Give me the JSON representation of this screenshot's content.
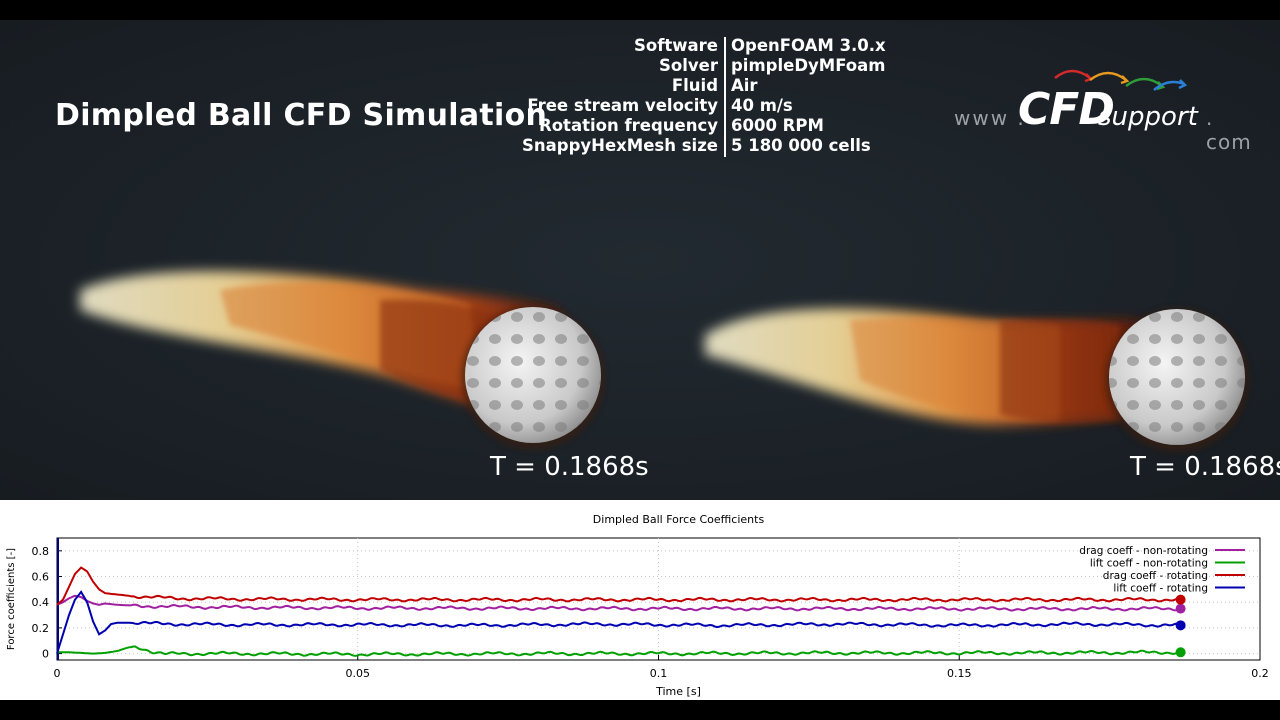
{
  "video": {
    "title": "Dimpled Ball CFD Simulation",
    "info": [
      {
        "label": "Software",
        "value": "OpenFOAM 3.0.x"
      },
      {
        "label": "Solver",
        "value": "pimpleDyMFoam"
      },
      {
        "label": "Fluid",
        "value": "Air"
      },
      {
        "label": "Free stream velocity",
        "value": "40 m/s"
      },
      {
        "label": "Rotation frequency",
        "value": "6000 RPM"
      },
      {
        "label": "SnappyHexMesh size",
        "value": "5 180 000 cells"
      }
    ],
    "logo": {
      "prefix": "www .",
      "brand": "CFD",
      "suffix": "support",
      "tld": ". com"
    },
    "time_left": "T = 0.1868s",
    "time_right": "T = 0.1868s"
  },
  "chart_data": {
    "type": "line",
    "title": "Dimpled Ball Force Coefficients",
    "xlabel": "Time [s]",
    "ylabel": "Force coefficients [-]",
    "xlim": [
      0,
      0.2
    ],
    "ylim": [
      -0.05,
      0.9
    ],
    "xticks": [
      0,
      0.05,
      0.1,
      0.15,
      0.2
    ],
    "xtick_labels": [
      "0",
      "0.05",
      "0.1",
      "0.15",
      "0.2"
    ],
    "yticks": [
      0,
      0.2,
      0.4,
      0.6,
      0.8
    ],
    "ytick_labels": [
      "0",
      "0.2",
      "0.4",
      "0.6",
      "0.8"
    ],
    "grid": true,
    "legend_position": "top-right",
    "series": [
      {
        "name": "drag coeff - non-rotating",
        "color": "#a020a0",
        "x": [
          0,
          0.001,
          0.002,
          0.003,
          0.004,
          0.005,
          0.006,
          0.007,
          0.008,
          0.01,
          0.012,
          0.015,
          0.02,
          0.03,
          0.05,
          0.08,
          0.1,
          0.13,
          0.16,
          0.1868
        ],
        "y": [
          0.38,
          0.4,
          0.43,
          0.45,
          0.44,
          0.41,
          0.39,
          0.38,
          0.39,
          0.38,
          0.375,
          0.37,
          0.365,
          0.36,
          0.355,
          0.352,
          0.35,
          0.35,
          0.348,
          0.35
        ]
      },
      {
        "name": "lift coeff - non-rotating",
        "color": "#00a000",
        "x": [
          0,
          0.002,
          0.004,
          0.006,
          0.008,
          0.01,
          0.012,
          0.013,
          0.014,
          0.016,
          0.018,
          0.02,
          0.03,
          0.05,
          0.08,
          0.1,
          0.13,
          0.16,
          0.1868
        ],
        "y": [
          0.01,
          0.01,
          0.005,
          0.0,
          0.005,
          0.02,
          0.05,
          0.055,
          0.045,
          0.01,
          -0.005,
          0.0,
          0.0,
          -0.005,
          0.0,
          0.0,
          0.005,
          0.005,
          0.01
        ]
      },
      {
        "name": "drag coeff - rotating",
        "color": "#c00000",
        "x": [
          0,
          0.001,
          0.002,
          0.003,
          0.004,
          0.005,
          0.006,
          0.007,
          0.008,
          0.01,
          0.012,
          0.015,
          0.02,
          0.03,
          0.05,
          0.08,
          0.1,
          0.13,
          0.16,
          0.1868
        ],
        "y": [
          0.38,
          0.42,
          0.52,
          0.62,
          0.67,
          0.64,
          0.56,
          0.5,
          0.47,
          0.46,
          0.45,
          0.44,
          0.43,
          0.425,
          0.42,
          0.42,
          0.42,
          0.42,
          0.42,
          0.42
        ]
      },
      {
        "name": "lift coeff - rotating",
        "color": "#0000b0",
        "x": [
          0,
          0.001,
          0.002,
          0.003,
          0.004,
          0.005,
          0.006,
          0.007,
          0.008,
          0.009,
          0.01,
          0.012,
          0.015,
          0.02,
          0.03,
          0.05,
          0.07,
          0.09,
          0.11,
          0.13,
          0.15,
          0.17,
          0.1868
        ],
        "y": [
          0.0,
          0.15,
          0.3,
          0.42,
          0.48,
          0.4,
          0.25,
          0.15,
          0.18,
          0.23,
          0.24,
          0.24,
          0.235,
          0.23,
          0.225,
          0.225,
          0.22,
          0.23,
          0.22,
          0.23,
          0.22,
          0.23,
          0.22
        ]
      }
    ]
  }
}
